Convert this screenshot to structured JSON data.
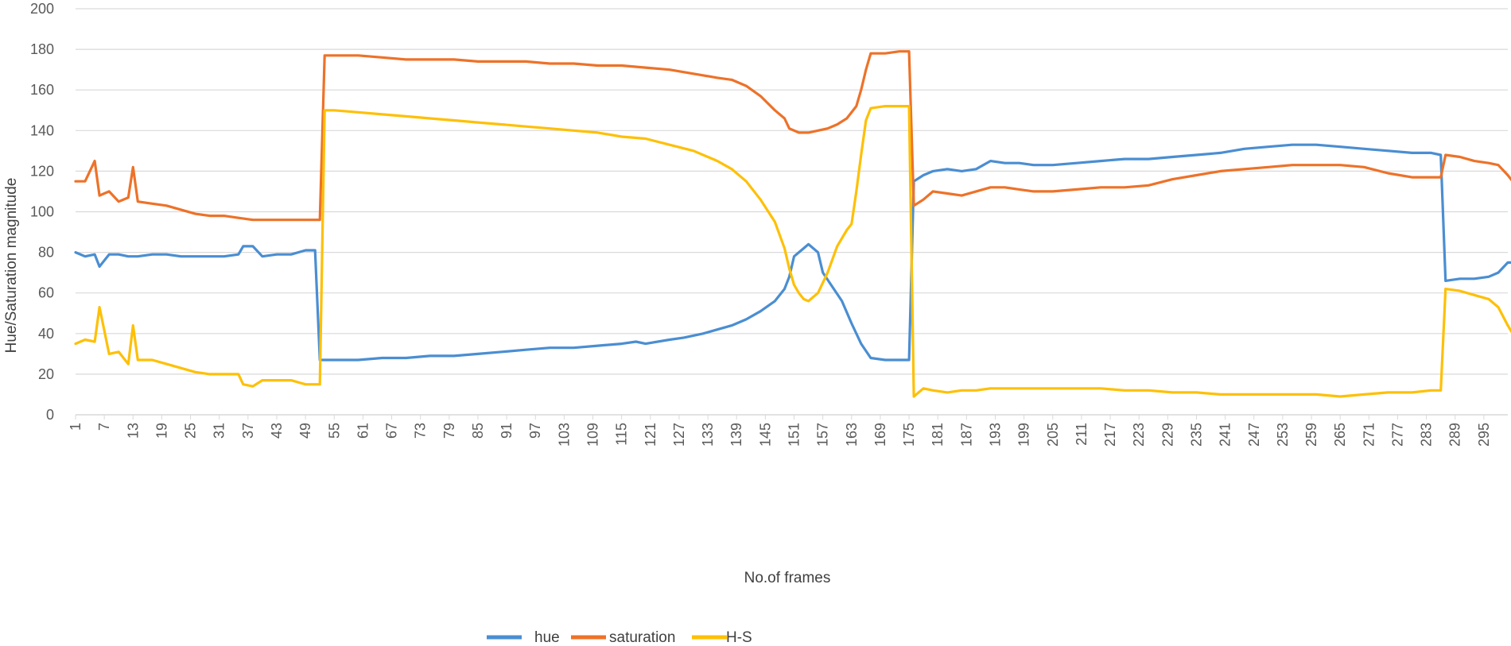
{
  "chart_data": {
    "type": "line",
    "xlabel": "No.of frames",
    "ylabel": "Hue/Saturation magnitude",
    "ylim": [
      0,
      200
    ],
    "yticks": [
      0,
      20,
      40,
      60,
      80,
      100,
      120,
      140,
      160,
      180,
      200
    ],
    "xlim": [
      1,
      300
    ],
    "xticks": [
      1,
      7,
      13,
      19,
      25,
      31,
      37,
      43,
      49,
      55,
      61,
      67,
      73,
      79,
      85,
      91,
      97,
      103,
      109,
      115,
      121,
      127,
      133,
      139,
      145,
      151,
      157,
      163,
      169,
      175,
      181,
      187,
      193,
      199,
      205,
      211,
      217,
      223,
      229,
      235,
      241,
      247,
      253,
      259,
      265,
      271,
      277,
      283,
      289,
      295
    ],
    "grid": true,
    "legend_position": "bottom",
    "series": [
      {
        "name": "hue",
        "color": "#4A8ED2",
        "points": [
          [
            1,
            80
          ],
          [
            3,
            78
          ],
          [
            5,
            79
          ],
          [
            6,
            73
          ],
          [
            8,
            79
          ],
          [
            10,
            79
          ],
          [
            12,
            78
          ],
          [
            14,
            78
          ],
          [
            17,
            79
          ],
          [
            20,
            79
          ],
          [
            23,
            78
          ],
          [
            26,
            78
          ],
          [
            29,
            78
          ],
          [
            32,
            78
          ],
          [
            35,
            79
          ],
          [
            36,
            83
          ],
          [
            38,
            83
          ],
          [
            40,
            78
          ],
          [
            43,
            79
          ],
          [
            46,
            79
          ],
          [
            49,
            81
          ],
          [
            51,
            81
          ],
          [
            52,
            27
          ],
          [
            55,
            27
          ],
          [
            60,
            27
          ],
          [
            65,
            28
          ],
          [
            70,
            28
          ],
          [
            75,
            29
          ],
          [
            80,
            29
          ],
          [
            85,
            30
          ],
          [
            90,
            31
          ],
          [
            95,
            32
          ],
          [
            100,
            33
          ],
          [
            105,
            33
          ],
          [
            110,
            34
          ],
          [
            115,
            35
          ],
          [
            118,
            36
          ],
          [
            120,
            35
          ],
          [
            125,
            37
          ],
          [
            128,
            38
          ],
          [
            132,
            40
          ],
          [
            135,
            42
          ],
          [
            138,
            44
          ],
          [
            141,
            47
          ],
          [
            144,
            51
          ],
          [
            147,
            56
          ],
          [
            149,
            62
          ],
          [
            150,
            68
          ],
          [
            151,
            78
          ],
          [
            152,
            80
          ],
          [
            153,
            82
          ],
          [
            154,
            84
          ],
          [
            156,
            80
          ],
          [
            157,
            70
          ],
          [
            159,
            63
          ],
          [
            161,
            56
          ],
          [
            163,
            45
          ],
          [
            165,
            35
          ],
          [
            167,
            28
          ],
          [
            170,
            27
          ],
          [
            173,
            27
          ],
          [
            175,
            27
          ],
          [
            176,
            115
          ],
          [
            178,
            118
          ],
          [
            180,
            120
          ],
          [
            183,
            121
          ],
          [
            186,
            120
          ],
          [
            189,
            121
          ],
          [
            192,
            125
          ],
          [
            195,
            124
          ],
          [
            198,
            124
          ],
          [
            201,
            123
          ],
          [
            205,
            123
          ],
          [
            210,
            124
          ],
          [
            215,
            125
          ],
          [
            220,
            126
          ],
          [
            225,
            126
          ],
          [
            230,
            127
          ],
          [
            235,
            128
          ],
          [
            240,
            129
          ],
          [
            245,
            131
          ],
          [
            250,
            132
          ],
          [
            255,
            133
          ],
          [
            260,
            133
          ],
          [
            265,
            132
          ],
          [
            270,
            131
          ],
          [
            275,
            130
          ],
          [
            280,
            129
          ],
          [
            284,
            129
          ],
          [
            286,
            128
          ],
          [
            287,
            66
          ],
          [
            290,
            67
          ],
          [
            293,
            67
          ],
          [
            296,
            68
          ],
          [
            298,
            70
          ],
          [
            300,
            75
          ],
          [
            301,
            75
          ]
        ]
      },
      {
        "name": "saturation",
        "color": "#ED7229",
        "points": [
          [
            1,
            115
          ],
          [
            3,
            115
          ],
          [
            5,
            125
          ],
          [
            6,
            108
          ],
          [
            8,
            110
          ],
          [
            10,
            105
          ],
          [
            12,
            107
          ],
          [
            13,
            122
          ],
          [
            14,
            105
          ],
          [
            17,
            104
          ],
          [
            20,
            103
          ],
          [
            23,
            101
          ],
          [
            26,
            99
          ],
          [
            29,
            98
          ],
          [
            32,
            98
          ],
          [
            35,
            97
          ],
          [
            38,
            96
          ],
          [
            41,
            96
          ],
          [
            44,
            96
          ],
          [
            47,
            96
          ],
          [
            50,
            96
          ],
          [
            52,
            96
          ],
          [
            53,
            177
          ],
          [
            55,
            177
          ],
          [
            60,
            177
          ],
          [
            65,
            176
          ],
          [
            70,
            175
          ],
          [
            75,
            175
          ],
          [
            80,
            175
          ],
          [
            85,
            174
          ],
          [
            90,
            174
          ],
          [
            95,
            174
          ],
          [
            100,
            173
          ],
          [
            105,
            173
          ],
          [
            110,
            172
          ],
          [
            115,
            172
          ],
          [
            120,
            171
          ],
          [
            125,
            170
          ],
          [
            130,
            168
          ],
          [
            135,
            166
          ],
          [
            138,
            165
          ],
          [
            141,
            162
          ],
          [
            144,
            157
          ],
          [
            147,
            150
          ],
          [
            149,
            146
          ],
          [
            150,
            141
          ],
          [
            152,
            139
          ],
          [
            154,
            139
          ],
          [
            156,
            140
          ],
          [
            158,
            141
          ],
          [
            160,
            143
          ],
          [
            162,
            146
          ],
          [
            164,
            152
          ],
          [
            165,
            160
          ],
          [
            166,
            170
          ],
          [
            167,
            178
          ],
          [
            170,
            178
          ],
          [
            173,
            179
          ],
          [
            175,
            179
          ],
          [
            176,
            103
          ],
          [
            178,
            106
          ],
          [
            180,
            110
          ],
          [
            183,
            109
          ],
          [
            186,
            108
          ],
          [
            189,
            110
          ],
          [
            192,
            112
          ],
          [
            195,
            112
          ],
          [
            198,
            111
          ],
          [
            201,
            110
          ],
          [
            205,
            110
          ],
          [
            210,
            111
          ],
          [
            215,
            112
          ],
          [
            220,
            112
          ],
          [
            225,
            113
          ],
          [
            230,
            116
          ],
          [
            235,
            118
          ],
          [
            240,
            120
          ],
          [
            245,
            121
          ],
          [
            250,
            122
          ],
          [
            255,
            123
          ],
          [
            260,
            123
          ],
          [
            265,
            123
          ],
          [
            270,
            122
          ],
          [
            275,
            119
          ],
          [
            280,
            117
          ],
          [
            284,
            117
          ],
          [
            286,
            117
          ],
          [
            287,
            128
          ],
          [
            290,
            127
          ],
          [
            293,
            125
          ],
          [
            296,
            124
          ],
          [
            298,
            123
          ],
          [
            300,
            118
          ],
          [
            301,
            115
          ]
        ]
      },
      {
        "name": "H-S",
        "color": "#FEC007",
        "points": [
          [
            1,
            35
          ],
          [
            3,
            37
          ],
          [
            5,
            36
          ],
          [
            6,
            53
          ],
          [
            8,
            30
          ],
          [
            10,
            31
          ],
          [
            12,
            25
          ],
          [
            13,
            44
          ],
          [
            14,
            27
          ],
          [
            17,
            27
          ],
          [
            20,
            25
          ],
          [
            23,
            23
          ],
          [
            26,
            21
          ],
          [
            29,
            20
          ],
          [
            32,
            20
          ],
          [
            35,
            20
          ],
          [
            36,
            15
          ],
          [
            38,
            14
          ],
          [
            40,
            17
          ],
          [
            43,
            17
          ],
          [
            46,
            17
          ],
          [
            49,
            15
          ],
          [
            52,
            15
          ],
          [
            53,
            150
          ],
          [
            55,
            150
          ],
          [
            60,
            149
          ],
          [
            65,
            148
          ],
          [
            70,
            147
          ],
          [
            75,
            146
          ],
          [
            80,
            145
          ],
          [
            85,
            144
          ],
          [
            90,
            143
          ],
          [
            95,
            142
          ],
          [
            100,
            141
          ],
          [
            105,
            140
          ],
          [
            110,
            139
          ],
          [
            115,
            137
          ],
          [
            120,
            136
          ],
          [
            125,
            133
          ],
          [
            130,
            130
          ],
          [
            135,
            125
          ],
          [
            138,
            121
          ],
          [
            141,
            115
          ],
          [
            144,
            106
          ],
          [
            147,
            95
          ],
          [
            149,
            82
          ],
          [
            150,
            72
          ],
          [
            151,
            64
          ],
          [
            152,
            60
          ],
          [
            153,
            57
          ],
          [
            154,
            56
          ],
          [
            156,
            60
          ],
          [
            158,
            70
          ],
          [
            160,
            83
          ],
          [
            162,
            91
          ],
          [
            163,
            94
          ],
          [
            164,
            110
          ],
          [
            165,
            128
          ],
          [
            166,
            145
          ],
          [
            167,
            151
          ],
          [
            170,
            152
          ],
          [
            173,
            152
          ],
          [
            175,
            152
          ],
          [
            176,
            9
          ],
          [
            178,
            13
          ],
          [
            180,
            12
          ],
          [
            183,
            11
          ],
          [
            186,
            12
          ],
          [
            189,
            12
          ],
          [
            192,
            13
          ],
          [
            195,
            13
          ],
          [
            198,
            13
          ],
          [
            201,
            13
          ],
          [
            205,
            13
          ],
          [
            210,
            13
          ],
          [
            215,
            13
          ],
          [
            220,
            12
          ],
          [
            225,
            12
          ],
          [
            230,
            11
          ],
          [
            235,
            11
          ],
          [
            240,
            10
          ],
          [
            245,
            10
          ],
          [
            250,
            10
          ],
          [
            255,
            10
          ],
          [
            260,
            10
          ],
          [
            265,
            9
          ],
          [
            270,
            10
          ],
          [
            275,
            11
          ],
          [
            280,
            11
          ],
          [
            284,
            12
          ],
          [
            286,
            12
          ],
          [
            287,
            62
          ],
          [
            290,
            61
          ],
          [
            293,
            59
          ],
          [
            296,
            57
          ],
          [
            298,
            53
          ],
          [
            300,
            44
          ],
          [
            301,
            40
          ]
        ]
      }
    ]
  }
}
